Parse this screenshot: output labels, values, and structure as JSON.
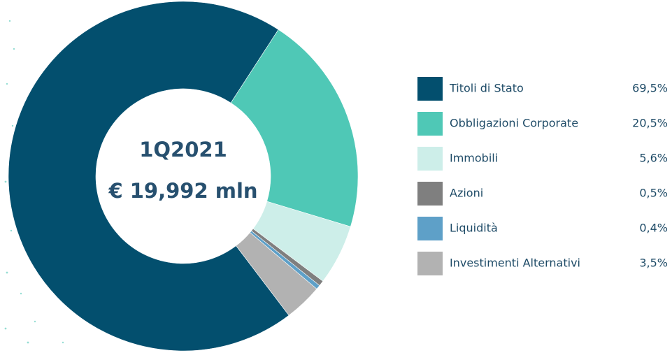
{
  "chart_data": {
    "type": "pie",
    "donut": true,
    "center_text": [
      "1Q2021",
      "€ 19,992 mln"
    ],
    "categories": [
      "Titoli di Stato",
      "Obbligazioni Corporate",
      "Immobili",
      "Azioni",
      "Liquidità",
      "Investimenti Alternativi"
    ],
    "values": [
      69.5,
      20.5,
      5.6,
      0.5,
      0.4,
      3.5
    ],
    "value_labels": [
      "69,5%",
      "20,5%",
      "5,6%",
      "0,5%",
      "0,4%",
      "3,5%"
    ],
    "colors": [
      "#034f6e",
      "#4fc8b6",
      "#cdeee9",
      "#7f7f7f",
      "#5ea0c8",
      "#b2b2b2"
    ],
    "legend": "right"
  }
}
